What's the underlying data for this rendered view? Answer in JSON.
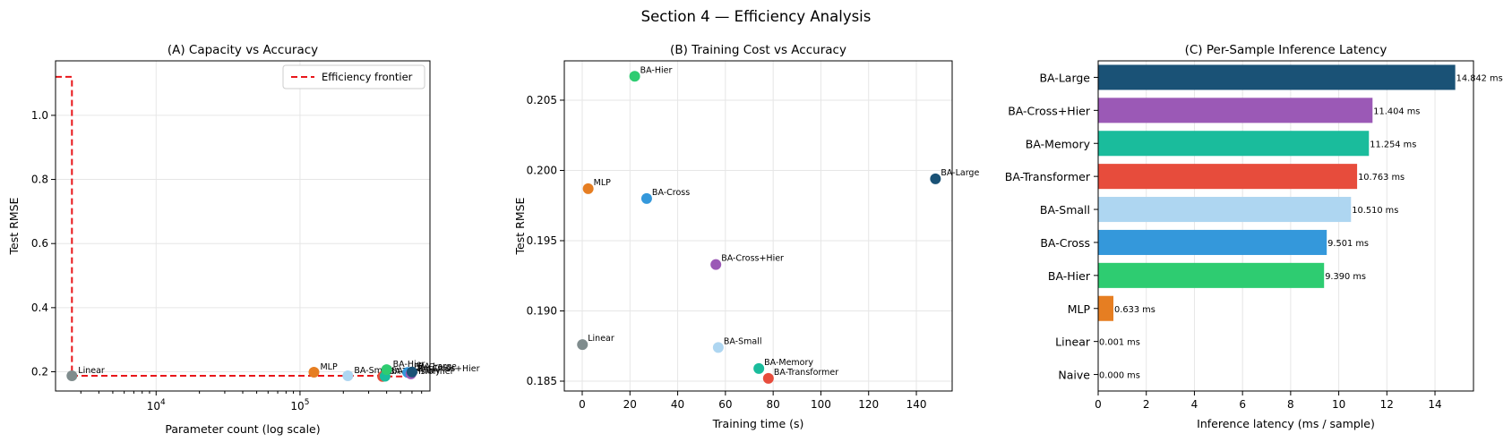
{
  "figure": {
    "suptitle": "Section 4 — Efficiency Analysis"
  },
  "colors": {
    "Naive": "#7f8c8d",
    "Linear": "#7f8c8d",
    "MLP": "#e67e22",
    "BA-Hier": "#2ecc71",
    "BA-Cross": "#3498db",
    "BA-Small": "#aed6f1",
    "BA-Transformer": "#e74c3c",
    "BA-Memory": "#1abc9c",
    "BA-Cross+Hier": "#9b59b6",
    "BA-Large": "#1a5276",
    "frontier": "#e8161a"
  },
  "chart_data": [
    {
      "id": "A",
      "type": "scatter",
      "title": "(A) Capacity vs Accuracy",
      "xlabel": "Parameter count (log scale)",
      "ylabel": "Test RMSE",
      "xscale": "log",
      "xlim": [
        2000,
        800000
      ],
      "ylim": [
        0.14,
        1.17
      ],
      "xticks": [
        {
          "v": 10000,
          "base": "10",
          "exp": "4"
        },
        {
          "v": 100000,
          "base": "10",
          "exp": "5"
        }
      ],
      "yticks": [
        0.2,
        0.4,
        0.6,
        0.8,
        1.0
      ],
      "grid": true,
      "legend": {
        "position": "upper right",
        "entries": [
          "Efficiency frontier"
        ]
      },
      "points": [
        {
          "name": "Linear",
          "x": 2600,
          "y": 0.1876
        },
        {
          "name": "MLP",
          "x": 125000,
          "y": 0.1987
        },
        {
          "name": "BA-Small",
          "x": 215000,
          "y": 0.1874
        },
        {
          "name": "BA-Transformer",
          "x": 375000,
          "y": 0.1852
        },
        {
          "name": "BA-Memory",
          "x": 390000,
          "y": 0.1859
        },
        {
          "name": "BA-Hier",
          "x": 400000,
          "y": 0.2067
        },
        {
          "name": "BA-Cross",
          "x": 560000,
          "y": 0.198
        },
        {
          "name": "BA-Cross+Hier",
          "x": 590000,
          "y": 0.1933
        },
        {
          "name": "BA-Large",
          "x": 600000,
          "y": 0.1994
        }
      ],
      "frontier": [
        [
          2000,
          1.12
        ],
        [
          2600,
          1.12
        ],
        [
          2600,
          0.1876
        ],
        [
          375000,
          0.1876
        ],
        [
          375000,
          0.1852
        ],
        [
          600000,
          0.1852
        ]
      ]
    },
    {
      "id": "B",
      "type": "scatter",
      "title": "(B) Training Cost vs Accuracy",
      "xlabel": "Training time (s)",
      "ylabel": "Test RMSE",
      "xlim": [
        -7.5,
        155
      ],
      "ylim": [
        0.1843,
        0.2078
      ],
      "xticks": [
        0,
        20,
        40,
        60,
        80,
        100,
        120,
        140
      ],
      "yticks": [
        0.185,
        0.19,
        0.195,
        0.2,
        0.205
      ],
      "grid": true,
      "points": [
        {
          "name": "Linear",
          "x": 0.1,
          "y": 0.1876
        },
        {
          "name": "MLP",
          "x": 2.5,
          "y": 0.1987
        },
        {
          "name": "BA-Hier",
          "x": 22,
          "y": 0.2067
        },
        {
          "name": "BA-Cross",
          "x": 27,
          "y": 0.198
        },
        {
          "name": "BA-Cross+Hier",
          "x": 56,
          "y": 0.1933
        },
        {
          "name": "BA-Small",
          "x": 57,
          "y": 0.1874
        },
        {
          "name": "BA-Memory",
          "x": 74,
          "y": 0.1859
        },
        {
          "name": "BA-Transformer",
          "x": 78,
          "y": 0.1852
        },
        {
          "name": "BA-Large",
          "x": 148,
          "y": 0.1994
        }
      ]
    },
    {
      "id": "C",
      "type": "bar",
      "orientation": "horizontal",
      "title": "(C) Per-Sample Inference Latency",
      "xlabel": "Inference latency (ms / sample)",
      "xlim": [
        0,
        15.6
      ],
      "xticks": [
        0,
        2,
        4,
        6,
        8,
        10,
        12,
        14
      ],
      "grid": true,
      "categories": [
        "BA-Large",
        "BA-Cross+Hier",
        "BA-Memory",
        "BA-Transformer",
        "BA-Small",
        "BA-Cross",
        "BA-Hier",
        "MLP",
        "Linear",
        "Naive"
      ],
      "values": [
        14.842,
        11.404,
        11.254,
        10.763,
        10.51,
        9.501,
        9.39,
        0.633,
        0.001,
        0.0
      ],
      "value_labels": [
        "14.842 ms",
        "11.404 ms",
        "11.254 ms",
        "10.763 ms",
        "10.510 ms",
        "9.501 ms",
        "9.390 ms",
        "0.633 ms",
        "0.001 ms",
        "0.000 ms"
      ]
    }
  ]
}
